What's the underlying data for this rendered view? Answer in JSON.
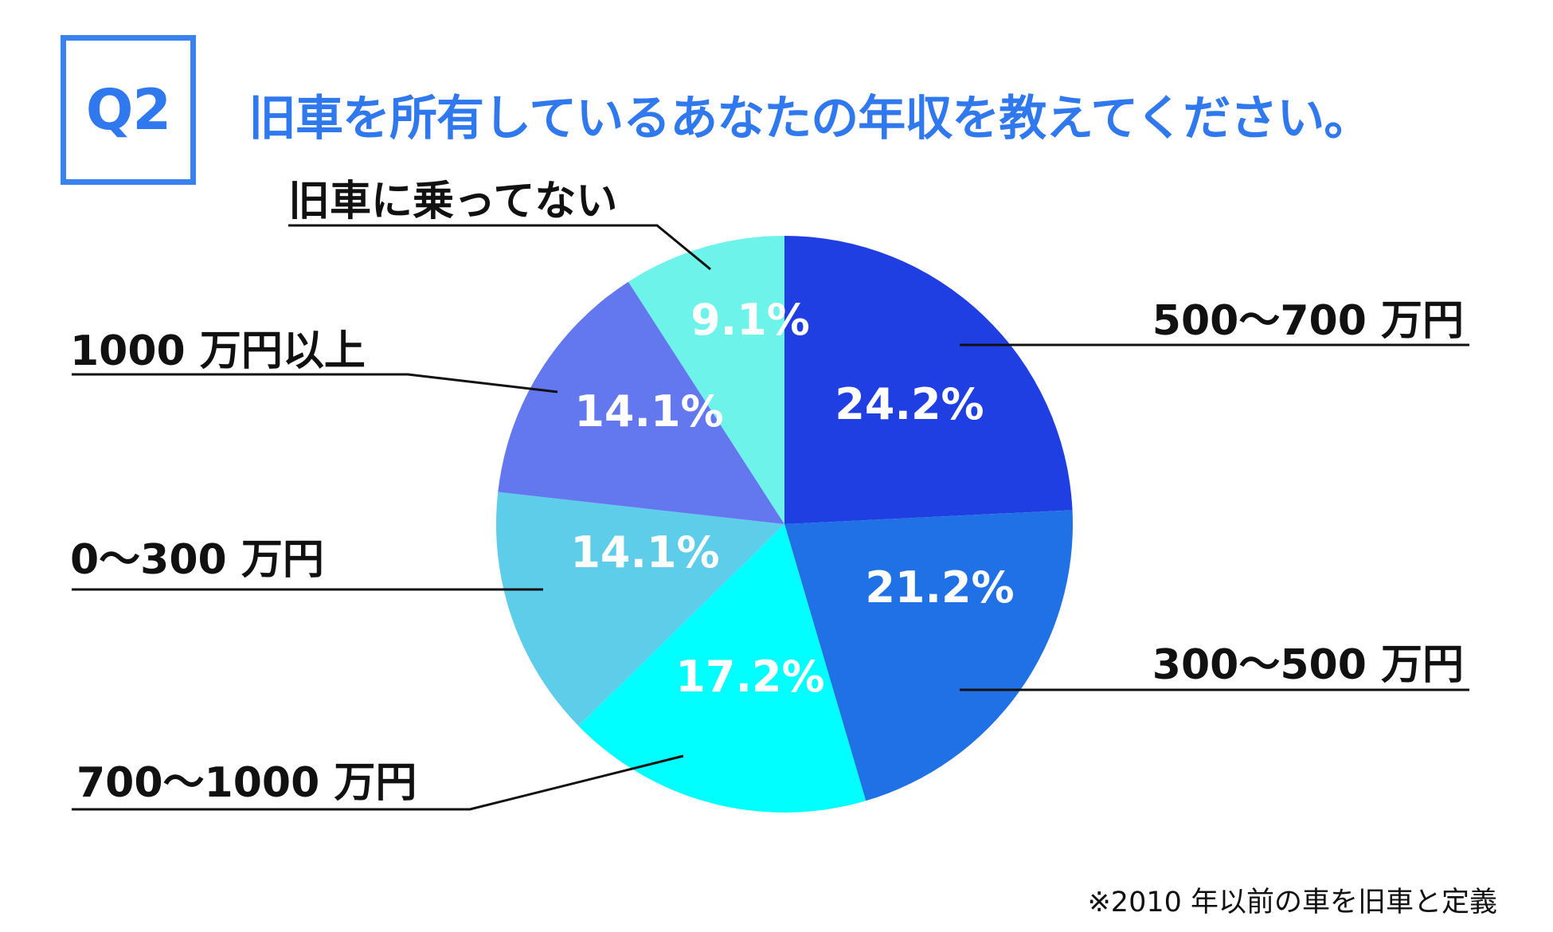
{
  "header": {
    "question_label": "Q2",
    "title": "旧車を所有しているあなたの年収を教えてください。"
  },
  "footnote": "※2010 年以前の車を旧車と定義",
  "colors": {
    "accent": "#2f78ee",
    "text": "#111111",
    "pct_text": "#ffffff"
  },
  "chart_data": {
    "type": "pie",
    "title": "旧車を所有しているあなたの年収を教えてください。",
    "start_angle_deg": 0,
    "direction": "clockwise",
    "slices": [
      {
        "label": "500〜700 万円",
        "value": 24.2,
        "pct_label": "24.2%",
        "color": "#1f3fe3"
      },
      {
        "label": "300〜500 万円",
        "value": 21.2,
        "pct_label": "21.2%",
        "color": "#2070e6"
      },
      {
        "label": "700〜1000 万円",
        "value": 17.2,
        "pct_label": "17.2%",
        "color": "#00ffff"
      },
      {
        "label": "0〜300 万円",
        "value": 14.1,
        "pct_label": "14.1%",
        "color": "#5dcdea"
      },
      {
        "label": "1000 万円以上",
        "value": 14.1,
        "pct_label": "14.1%",
        "color": "#6378ef"
      },
      {
        "label": "旧車に乗ってない",
        "value": 9.1,
        "pct_label": "9.1%",
        "color": "#6df3e9"
      }
    ]
  }
}
